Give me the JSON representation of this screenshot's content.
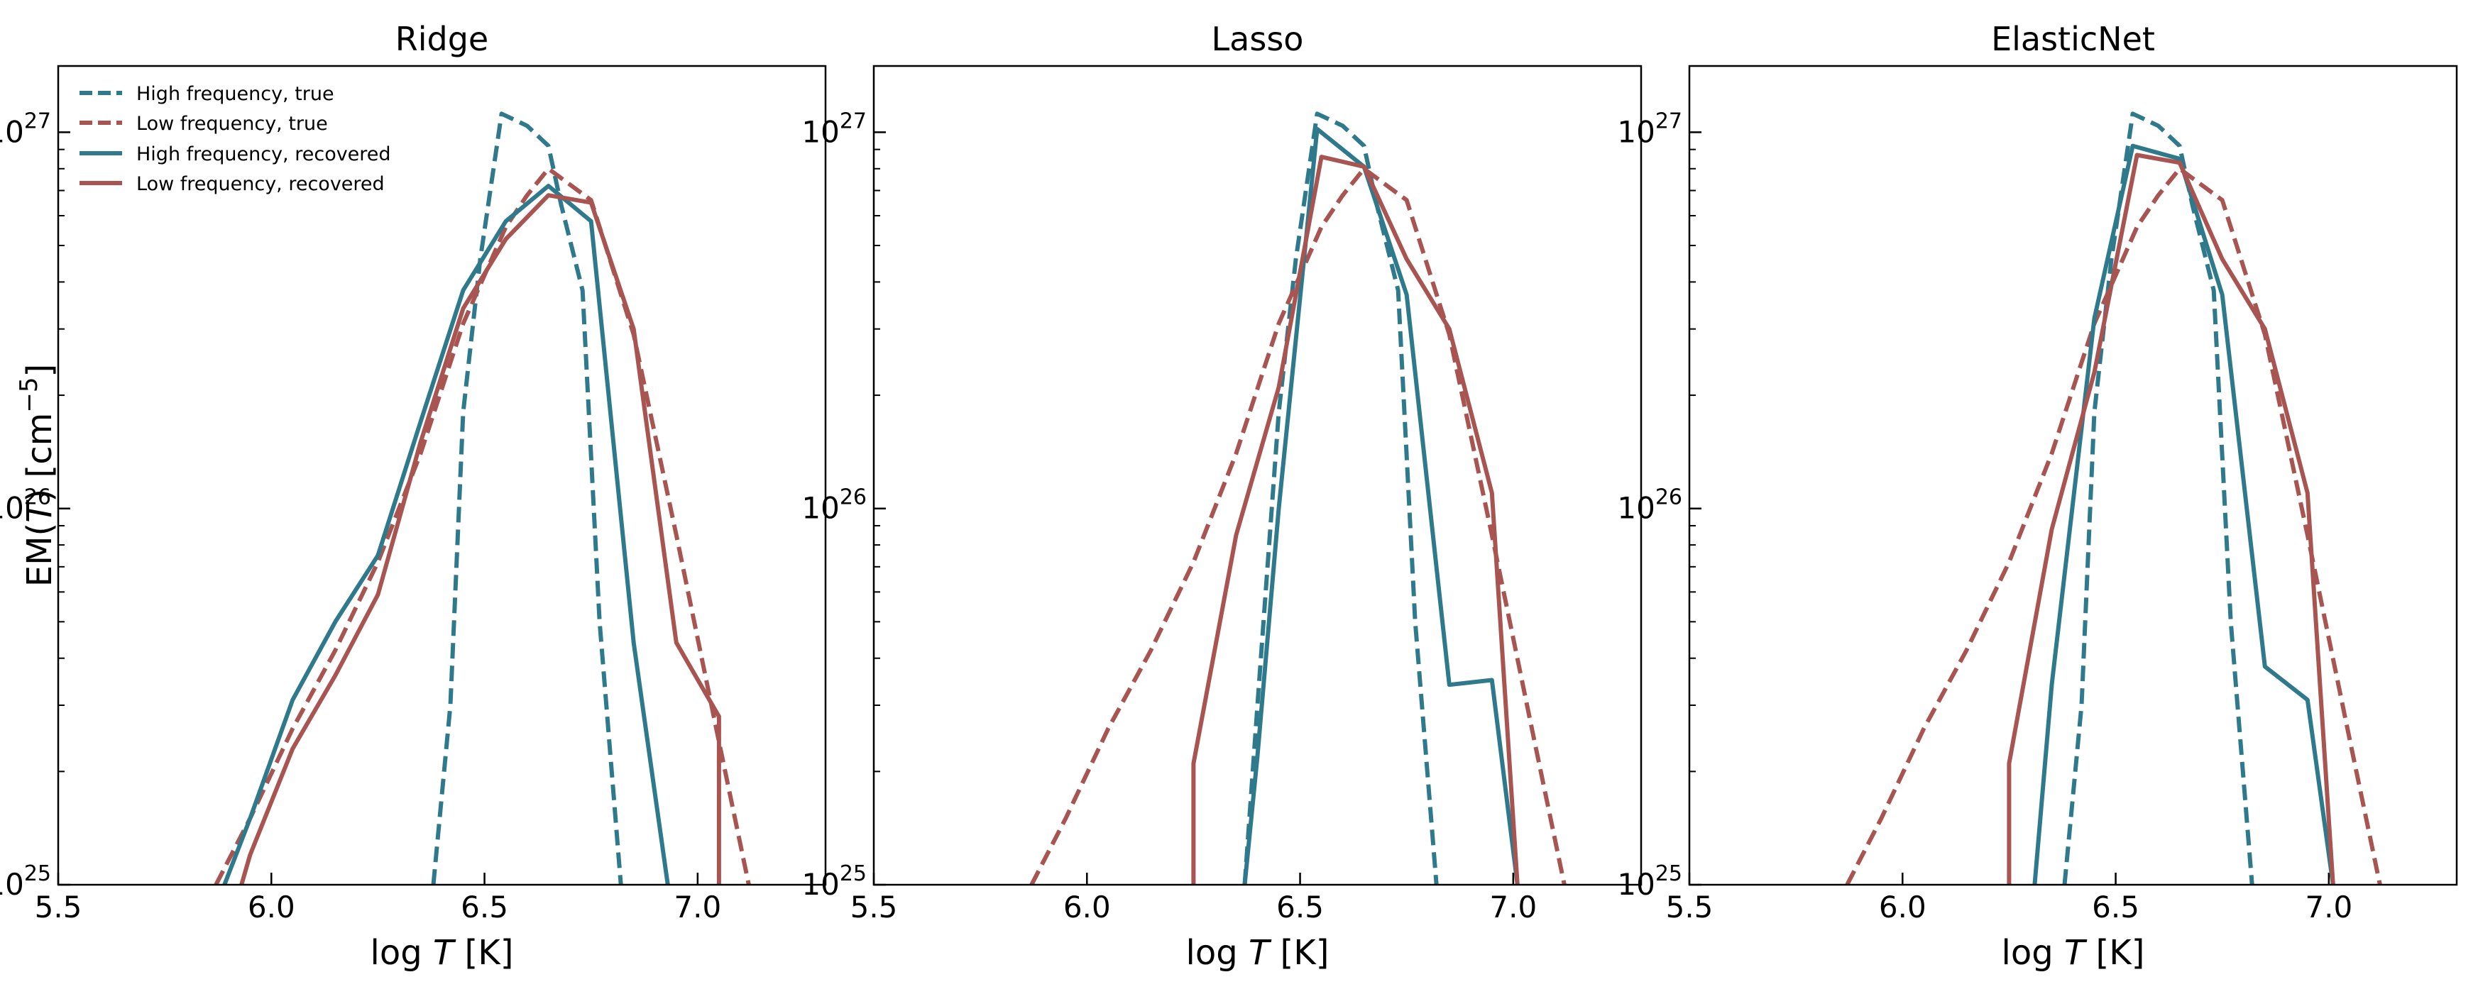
{
  "chart_data": [
    {
      "type": "line",
      "title": "Ridge",
      "xlabel": "log T [K]",
      "ylabel": "EM(T) [cm⁻⁵]",
      "xlim": [
        5.5,
        7.3
      ],
      "ylim": [
        1e+25,
        1.5e+27
      ],
      "yscale": "log",
      "xticks": [
        5.5,
        6.0,
        6.5,
        7.0
      ],
      "xtick_labels": [
        "5.5",
        "6.0",
        "6.5",
        "7.0"
      ],
      "yticks": [
        1e+25,
        1e+26,
        1e+27
      ],
      "ytick_labels": [
        "10",
        "10",
        "10"
      ],
      "ytick_exponents": [
        "25",
        "26",
        "27"
      ],
      "legend": {
        "position": "top-left"
      },
      "series": [
        {
          "name": "High frequency, true",
          "color": "#2e7a8c",
          "dash": "dashed",
          "x": [
            6.38,
            6.42,
            6.45,
            6.49,
            6.54,
            6.6,
            6.65,
            6.68,
            6.73,
            6.77,
            6.82
          ],
          "y": [
            1e+25,
            3e+25,
            1.8e+26,
            4.6e+26,
            1.12e+27,
            1.04e+27,
            9.2e+26,
            6.4e+26,
            3.8e+26,
            5e+25,
            1e+25
          ]
        },
        {
          "name": "Low frequency, true",
          "color": "#a85450",
          "dash": "dashed",
          "x": [
            5.87,
            5.95,
            6.05,
            6.15,
            6.25,
            6.35,
            6.45,
            6.55,
            6.6,
            6.65,
            6.75,
            6.85,
            6.95,
            7.05,
            7.12
          ],
          "y": [
            1e+25,
            1.5e+25,
            2.6e+25,
            4.2e+25,
            7.2e+25,
            1.4e+26,
            3.1e+26,
            5.6e+26,
            6.8e+26,
            8e+26,
            6.6e+26,
            2.9e+26,
            8.5e+25,
            2.4e+25,
            1e+25
          ]
        },
        {
          "name": "High frequency, recovered",
          "color": "#2e7a8c",
          "dash": "solid",
          "x": [
            5.89,
            5.95,
            6.05,
            6.15,
            6.25,
            6.35,
            6.45,
            6.55,
            6.65,
            6.75,
            6.85,
            6.93
          ],
          "y": [
            1e+25,
            1.5e+25,
            3.1e+25,
            5e+25,
            7.5e+25,
            1.7e+26,
            3.8e+26,
            5.8e+26,
            7.2e+26,
            5.8e+26,
            4.4e+25,
            1e+25
          ]
        },
        {
          "name": "Low frequency, recovered",
          "color": "#a85450",
          "dash": "solid",
          "x": [
            5.93,
            5.95,
            6.05,
            6.15,
            6.25,
            6.35,
            6.45,
            6.55,
            6.65,
            6.75,
            6.85,
            6.95,
            7.05,
            7.05
          ],
          "y": [
            1e+25,
            1.2e+25,
            2.3e+25,
            3.6e+25,
            5.9e+25,
            1.5e+26,
            3.4e+26,
            5.2e+26,
            6.8e+26,
            6.5e+26,
            3e+26,
            4.4e+25,
            2.8e+25,
            1e+25
          ]
        }
      ]
    },
    {
      "type": "line",
      "title": "Lasso",
      "xlabel": "log T [K]",
      "ylabel": "",
      "xlim": [
        5.5,
        7.3
      ],
      "ylim": [
        1e+25,
        1.5e+27
      ],
      "yscale": "log",
      "xticks": [
        5.5,
        6.0,
        6.5,
        7.0
      ],
      "xtick_labels": [
        "5.5",
        "6.0",
        "6.5",
        "7.0"
      ],
      "yticks": [
        1e+25,
        1e+26,
        1e+27
      ],
      "ytick_labels": [
        "10",
        "10",
        "10"
      ],
      "ytick_exponents": [
        "25",
        "26",
        "27"
      ],
      "series": [
        {
          "name": "High frequency, true",
          "color": "#2e7a8c",
          "dash": "dashed",
          "x": [
            6.37,
            6.4,
            6.45,
            6.49,
            6.54,
            6.6,
            6.65,
            6.68,
            6.73,
            6.77,
            6.82
          ],
          "y": [
            1e+25,
            3e+25,
            1.8e+26,
            4.6e+26,
            1.12e+27,
            1.04e+27,
            9.2e+26,
            6.4e+26,
            3.8e+26,
            5e+25,
            1e+25
          ]
        },
        {
          "name": "Low frequency, true",
          "color": "#a85450",
          "dash": "dashed",
          "x": [
            5.87,
            5.95,
            6.05,
            6.15,
            6.25,
            6.35,
            6.45,
            6.55,
            6.6,
            6.65,
            6.75,
            6.85,
            6.95,
            7.05,
            7.12
          ],
          "y": [
            1e+25,
            1.5e+25,
            2.6e+25,
            4.2e+25,
            7.2e+25,
            1.4e+26,
            3.1e+26,
            5.6e+26,
            6.8e+26,
            8e+26,
            6.6e+26,
            2.9e+26,
            8.5e+25,
            2.4e+25,
            1e+25
          ]
        },
        {
          "name": "High frequency, recovered",
          "color": "#2e7a8c",
          "dash": "solid",
          "x": [
            6.37,
            6.4,
            6.45,
            6.54,
            6.65,
            6.75,
            6.85,
            6.95,
            7.01
          ],
          "y": [
            1e+25,
            2.2e+25,
            1e+26,
            1.02e+27,
            8.1e+26,
            3.7e+26,
            3.4e+25,
            3.5e+25,
            1e+25
          ]
        },
        {
          "name": "Low frequency, recovered",
          "color": "#a85450",
          "dash": "solid",
          "x": [
            6.25,
            6.25,
            6.35,
            6.45,
            6.55,
            6.65,
            6.75,
            6.85,
            6.95,
            7.01
          ],
          "y": [
            1e+25,
            2.1e+25,
            8.5e+25,
            2.1e+26,
            8.6e+26,
            8.1e+26,
            4.6e+26,
            3e+26,
            1.1e+26,
            1e+25
          ]
        }
      ]
    },
    {
      "type": "line",
      "title": "ElasticNet",
      "xlabel": "log T [K]",
      "ylabel": "",
      "xlim": [
        5.5,
        7.3
      ],
      "ylim": [
        1e+25,
        1.5e+27
      ],
      "yscale": "log",
      "xticks": [
        5.5,
        6.0,
        6.5,
        7.0
      ],
      "xtick_labels": [
        "5.5",
        "6.0",
        "6.5",
        "7.0"
      ],
      "yticks": [
        1e+25,
        1e+26,
        1e+27
      ],
      "ytick_labels": [
        "10",
        "10",
        "10"
      ],
      "ytick_exponents": [
        "25",
        "26",
        "27"
      ],
      "series": [
        {
          "name": "High frequency, true",
          "color": "#2e7a8c",
          "dash": "dashed",
          "x": [
            6.38,
            6.42,
            6.45,
            6.49,
            6.54,
            6.6,
            6.65,
            6.68,
            6.73,
            6.77,
            6.82
          ],
          "y": [
            1e+25,
            3e+25,
            1.8e+26,
            4.6e+26,
            1.12e+27,
            1.04e+27,
            9.2e+26,
            6.4e+26,
            3.8e+26,
            5e+25,
            1e+25
          ]
        },
        {
          "name": "Low frequency, true",
          "color": "#a85450",
          "dash": "dashed",
          "x": [
            5.87,
            5.95,
            6.05,
            6.15,
            6.25,
            6.35,
            6.45,
            6.55,
            6.6,
            6.65,
            6.75,
            6.85,
            6.95,
            7.05,
            7.12
          ],
          "y": [
            1e+25,
            1.5e+25,
            2.6e+25,
            4.2e+25,
            7.2e+25,
            1.4e+26,
            3.1e+26,
            5.6e+26,
            6.8e+26,
            8e+26,
            6.6e+26,
            2.9e+26,
            8.5e+25,
            2.4e+25,
            1e+25
          ]
        },
        {
          "name": "High frequency, recovered",
          "color": "#2e7a8c",
          "dash": "solid",
          "x": [
            6.31,
            6.35,
            6.45,
            6.54,
            6.65,
            6.75,
            6.85,
            6.95,
            7.01
          ],
          "y": [
            1e+25,
            3.4e+25,
            3.2e+26,
            9.2e+26,
            8.5e+26,
            3.7e+26,
            3.8e+25,
            3.1e+25,
            1e+25
          ]
        },
        {
          "name": "Low frequency, recovered",
          "color": "#a85450",
          "dash": "solid",
          "x": [
            6.25,
            6.25,
            6.35,
            6.45,
            6.55,
            6.65,
            6.75,
            6.85,
            6.95,
            7.01
          ],
          "y": [
            1e+25,
            2.1e+25,
            8.8e+25,
            2.3e+26,
            8.7e+26,
            8.3e+26,
            4.6e+26,
            3e+26,
            1.1e+26,
            1e+25
          ]
        }
      ]
    }
  ]
}
